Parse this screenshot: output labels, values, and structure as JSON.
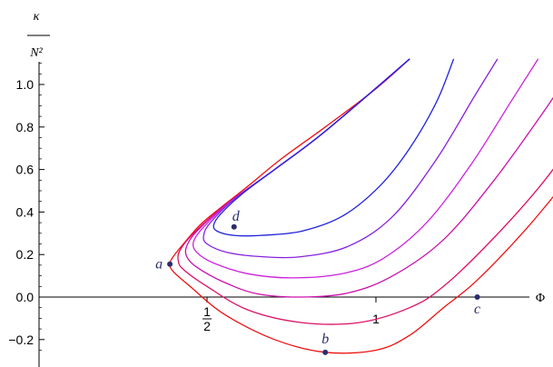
{
  "chart_data": {
    "type": "line",
    "ylabel_top": "κ",
    "ylabel_bottom": "N²",
    "xlabel": "Φ",
    "xlim": [
      0,
      1.9
    ],
    "ylim": [
      -0.3,
      1.12
    ],
    "yticks": [
      -0.2,
      0.0,
      0.2,
      0.4,
      0.6,
      0.8,
      1.0
    ],
    "ytick_labels": [
      "−0.2",
      "0.0",
      "0.2",
      "0.4",
      "0.6",
      "0.8",
      "1.0"
    ],
    "xticks": [
      {
        "value": 0.5,
        "label_num": "1",
        "label_den": "2"
      },
      {
        "value": 1.0,
        "label": "1"
      }
    ],
    "grid": false,
    "series": [
      {
        "color": "#ee1111",
        "points": [
          [
            1.1,
            1.12
          ],
          [
            1.0,
            0.98
          ],
          [
            0.85,
            0.8
          ],
          [
            0.72,
            0.65
          ],
          [
            0.62,
            0.52
          ],
          [
            0.54,
            0.42
          ],
          [
            0.48,
            0.34
          ],
          [
            0.43,
            0.25
          ],
          [
            0.4,
            0.19
          ],
          [
            0.39,
            0.155
          ],
          [
            0.4,
            0.12
          ],
          [
            0.45,
            0.05
          ],
          [
            0.55,
            -0.08
          ],
          [
            0.7,
            -0.2
          ],
          [
            0.85,
            -0.26
          ],
          [
            1.0,
            -0.25
          ],
          [
            1.1,
            -0.18
          ],
          [
            1.2,
            -0.05
          ],
          [
            1.3,
            0.08
          ],
          [
            1.45,
            0.33
          ],
          [
            1.6,
            0.62
          ],
          [
            1.75,
            0.92
          ],
          [
            1.86,
            1.12
          ]
        ]
      },
      {
        "color": "#dd1166",
        "points": [
          [
            1.1,
            1.12
          ],
          [
            0.85,
            0.78
          ],
          [
            0.7,
            0.6
          ],
          [
            0.56,
            0.44
          ],
          [
            0.46,
            0.3
          ],
          [
            0.42,
            0.22
          ],
          [
            0.415,
            0.17
          ],
          [
            0.43,
            0.13
          ],
          [
            0.5,
            0.05
          ],
          [
            0.62,
            -0.06
          ],
          [
            0.78,
            -0.12
          ],
          [
            0.95,
            -0.12
          ],
          [
            1.1,
            -0.05
          ],
          [
            1.2,
            0.05
          ],
          [
            1.35,
            0.28
          ],
          [
            1.5,
            0.55
          ],
          [
            1.65,
            0.88
          ],
          [
            1.75,
            1.12
          ]
        ]
      },
      {
        "color": "#cc11aa",
        "points": [
          [
            1.1,
            1.12
          ],
          [
            0.85,
            0.78
          ],
          [
            0.7,
            0.6
          ],
          [
            0.56,
            0.44
          ],
          [
            0.47,
            0.31
          ],
          [
            0.44,
            0.24
          ],
          [
            0.44,
            0.19
          ],
          [
            0.47,
            0.14
          ],
          [
            0.55,
            0.07
          ],
          [
            0.65,
            0.015
          ],
          [
            0.78,
            0.0
          ],
          [
            0.92,
            0.02
          ],
          [
            1.05,
            0.1
          ],
          [
            1.2,
            0.27
          ],
          [
            1.35,
            0.55
          ],
          [
            1.5,
            0.88
          ],
          [
            1.6,
            1.12
          ]
        ]
      },
      {
        "color": "#cc22dd",
        "points": [
          [
            1.1,
            1.12
          ],
          [
            0.85,
            0.78
          ],
          [
            0.7,
            0.6
          ],
          [
            0.57,
            0.45
          ],
          [
            0.49,
            0.33
          ],
          [
            0.46,
            0.26
          ],
          [
            0.47,
            0.21
          ],
          [
            0.52,
            0.16
          ],
          [
            0.62,
            0.11
          ],
          [
            0.75,
            0.09
          ],
          [
            0.9,
            0.11
          ],
          [
            1.02,
            0.18
          ],
          [
            1.15,
            0.35
          ],
          [
            1.28,
            0.62
          ],
          [
            1.4,
            0.92
          ],
          [
            1.48,
            1.12
          ]
        ]
      },
      {
        "color": "#8822dd",
        "points": [
          [
            1.1,
            1.12
          ],
          [
            0.85,
            0.78
          ],
          [
            0.7,
            0.6
          ],
          [
            0.58,
            0.46
          ],
          [
            0.51,
            0.35
          ],
          [
            0.49,
            0.29
          ],
          [
            0.5,
            0.25
          ],
          [
            0.56,
            0.21
          ],
          [
            0.66,
            0.19
          ],
          [
            0.78,
            0.19
          ],
          [
            0.92,
            0.24
          ],
          [
            1.05,
            0.38
          ],
          [
            1.18,
            0.65
          ],
          [
            1.29,
            0.94
          ],
          [
            1.36,
            1.12
          ]
        ]
      },
      {
        "color": "#2222dd",
        "points": [
          [
            1.1,
            1.12
          ],
          [
            0.85,
            0.78
          ],
          [
            0.7,
            0.6
          ],
          [
            0.6,
            0.48
          ],
          [
            0.54,
            0.39
          ],
          [
            0.52,
            0.34
          ],
          [
            0.53,
            0.31
          ],
          [
            0.58,
            0.29
          ],
          [
            0.66,
            0.29
          ],
          [
            0.78,
            0.31
          ],
          [
            0.9,
            0.38
          ],
          [
            1.01,
            0.52
          ],
          [
            1.1,
            0.7
          ],
          [
            1.18,
            0.92
          ],
          [
            1.23,
            1.12
          ]
        ]
      }
    ],
    "points": [
      {
        "label": "a",
        "x": 0.39,
        "y": 0.155
      },
      {
        "label": "b",
        "x": 0.85,
        "y": -0.26
      },
      {
        "label": "c",
        "x": 1.3,
        "y": 0.0
      },
      {
        "label": "d",
        "x": 0.58,
        "y": 0.33
      }
    ]
  }
}
